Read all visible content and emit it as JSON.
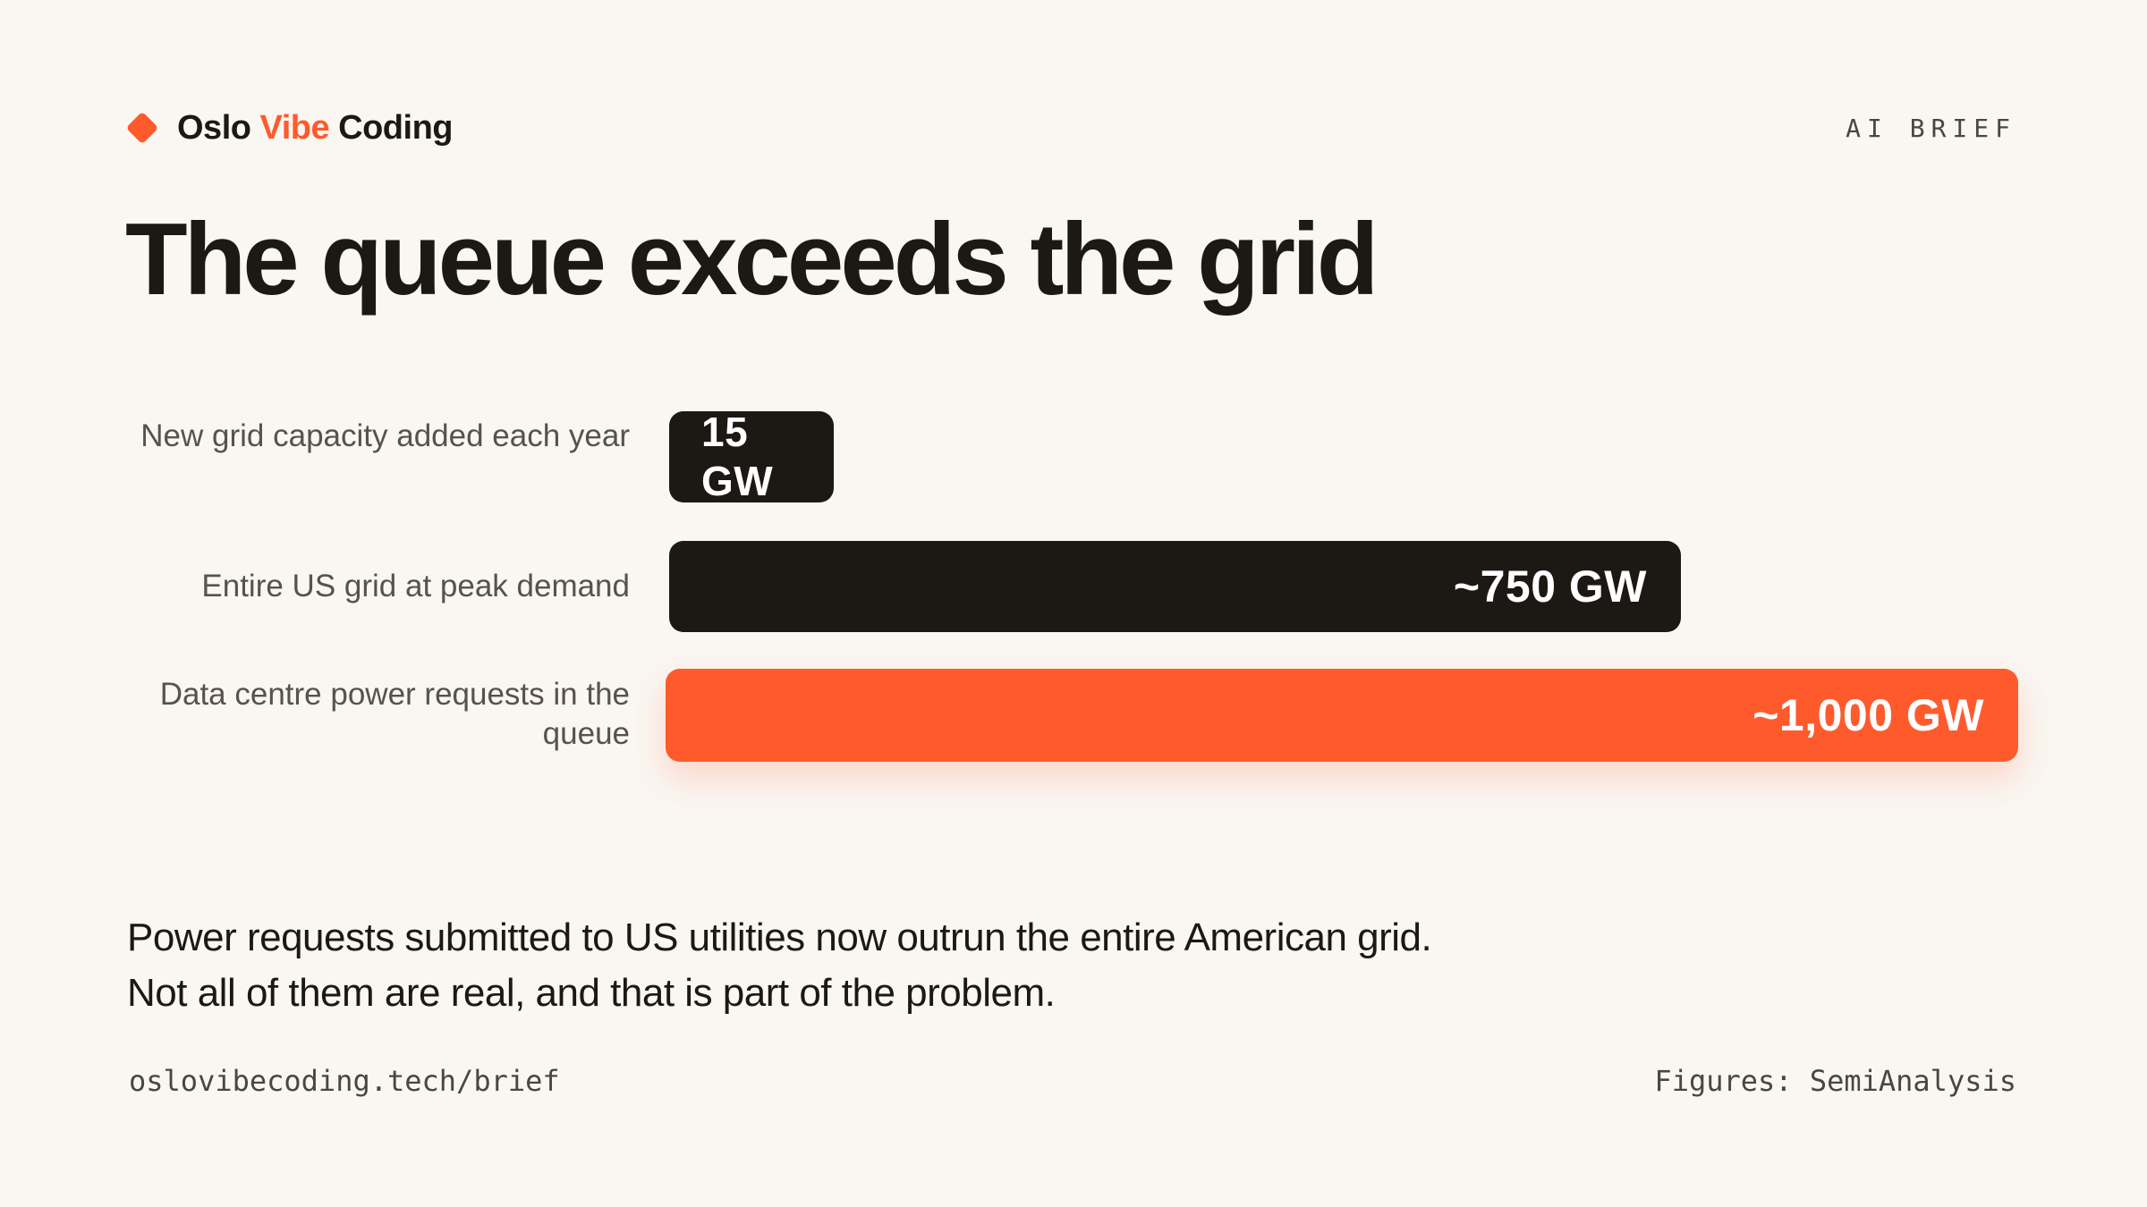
{
  "header": {
    "brand_part1": "Oslo ",
    "brand_accent": "Vibe",
    "brand_part2": " Coding",
    "tag": "AI BRIEF"
  },
  "title": "The queue exceeds the grid",
  "chart_data": {
    "type": "bar",
    "orientation": "horizontal",
    "categories": [
      "New grid capacity added each year",
      "Entire US grid at peak demand",
      "Data centre power requests in the queue"
    ],
    "values": [
      15,
      750,
      1000
    ],
    "value_labels": [
      "15 GW",
      "~750 GW",
      "~1,000 GW"
    ],
    "unit": "GW",
    "title": "The queue exceeds the grid",
    "xlim": [
      0,
      1000
    ],
    "grid": false,
    "legend": "none",
    "colors": [
      "#1c1814",
      "#1c1814",
      "#ff5a2c"
    ]
  },
  "caption": "Power requests submitted to US utilities now outrun the entire American grid. Not all of them are real, and that is part of the problem.",
  "footer": {
    "url": "oslovibecoding.tech/brief",
    "source": "Figures: SemiAnalysis"
  },
  "colors": {
    "background": "#faf6f1",
    "accent": "#ff5a2c",
    "ink": "#1c1814"
  }
}
